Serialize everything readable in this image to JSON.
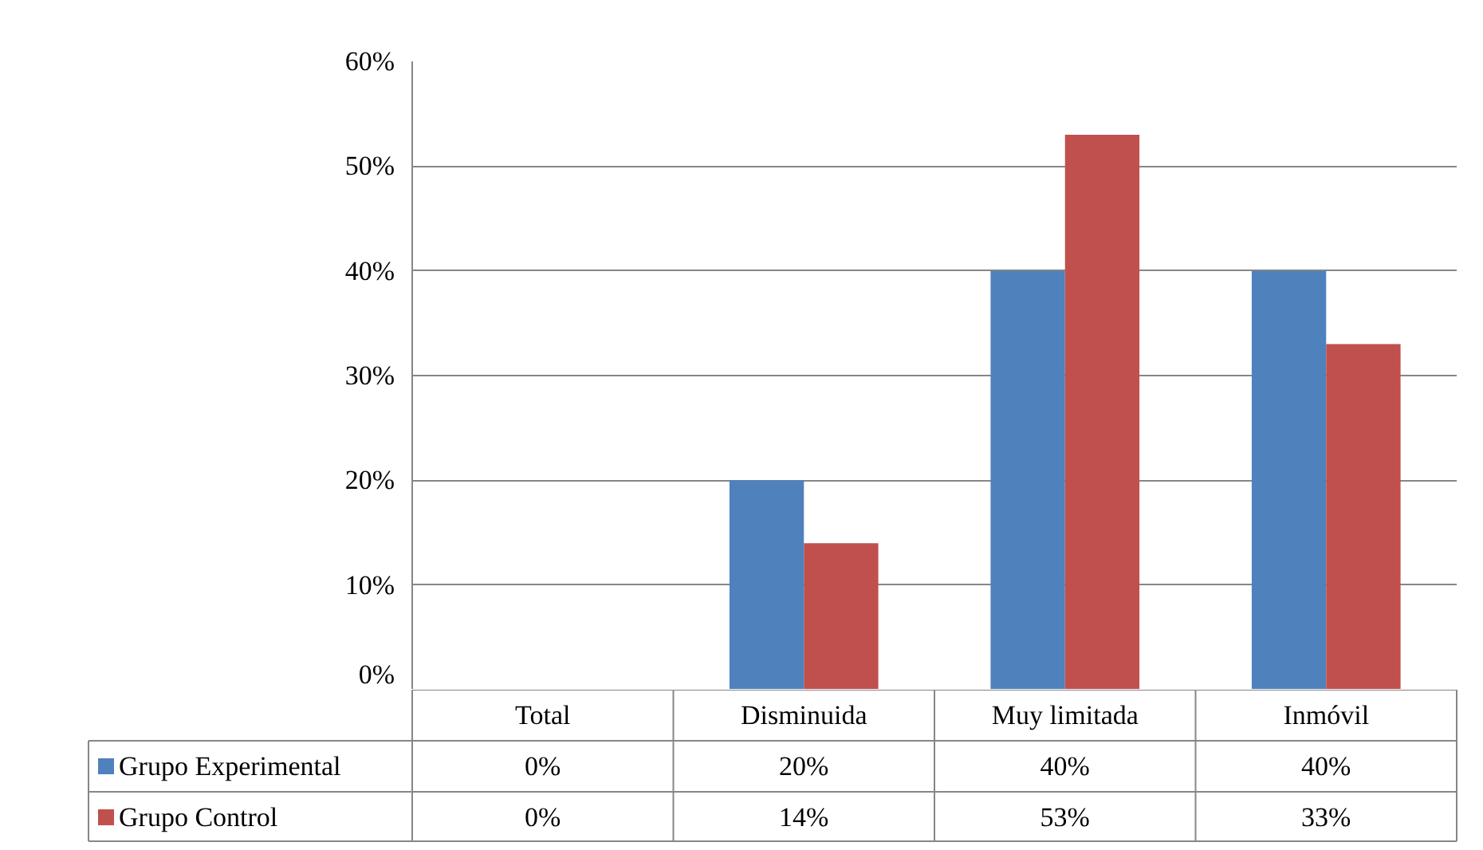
{
  "chart_data": {
    "type": "bar",
    "categories": [
      "Total",
      "Disminuida",
      "Muy limitada",
      "Inmóvil"
    ],
    "series": [
      {
        "name": "Grupo Experimental",
        "color": "#4f81bd",
        "values": [
          0,
          20,
          40,
          40
        ],
        "value_labels": [
          "0%",
          "20%",
          "40%",
          "40%"
        ]
      },
      {
        "name": "Grupo Control",
        "color": "#c0504d",
        "values": [
          0,
          14,
          53,
          33
        ],
        "value_labels": [
          "0%",
          "14%",
          "53%",
          "33%"
        ]
      }
    ],
    "ylim": [
      0,
      60
    ],
    "yticks": [
      {
        "value": 0,
        "label": "0%"
      },
      {
        "value": 10,
        "label": "10%"
      },
      {
        "value": 20,
        "label": "20%"
      },
      {
        "value": 30,
        "label": "30%"
      },
      {
        "value": 40,
        "label": "40%"
      },
      {
        "value": 50,
        "label": "50%"
      },
      {
        "value": 60,
        "label": "60%"
      }
    ],
    "grid": "y",
    "legend": "bottom"
  }
}
